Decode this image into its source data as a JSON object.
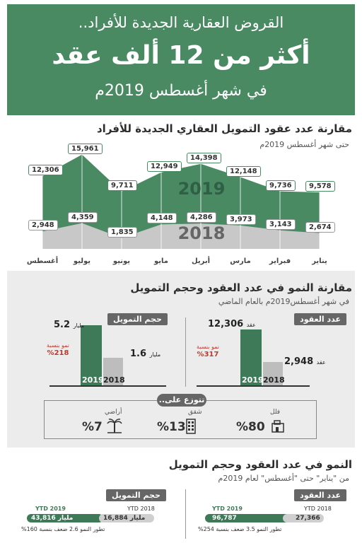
{
  "header": {
    "subtitle": "القروض العقارية الجديدة للأفراد..",
    "title": "أكثر من 12 ألف عقد",
    "date": "في شهر أغسطس 2019م"
  },
  "section1": {
    "title": "مقارنة عدد عقود التمويل العقاري الجديدة للأفراد",
    "subtitle": "حتى شهر أغسطس 2019م"
  },
  "chart_data": {
    "type": "area",
    "categories": [
      "يناير",
      "فبراير",
      "مارس",
      "أبريل",
      "مايو",
      "يونيو",
      "يوليو",
      "أغسطس"
    ],
    "series": [
      {
        "name": "2019",
        "values": [
          9578,
          9736,
          12148,
          14398,
          12949,
          9711,
          15961,
          12306
        ]
      },
      {
        "name": "2018",
        "values": [
          2674,
          3143,
          3973,
          4286,
          4148,
          1835,
          4359,
          2948
        ]
      }
    ],
    "value_labels_2019": [
      "9,578",
      "9,736",
      "12,148",
      "14,398",
      "12,949",
      "9,711",
      "15,961",
      "12,306"
    ],
    "value_labels_2018": [
      "2,674",
      "3,143",
      "3,973",
      "4,286",
      "4,148",
      "1,835",
      "4,359",
      "2,948"
    ],
    "ylim": [
      0,
      17000
    ],
    "colors": {
      "2019": "#4a8a63",
      "2018": "#c8c8c8"
    }
  },
  "section2": {
    "title": "مقارنة النمو في عدد العقود وحجم التمويل",
    "subtitle": "في شهر أغسطس2019م بالعام الماضي",
    "contracts": {
      "tag": "عدد العقود",
      "val2019": "12,306",
      "val2018": "2,948",
      "unit": "عقد",
      "growth_label": "نمو بنسبة",
      "growth": "%317",
      "year2019": "2019",
      "year2018": "2018"
    },
    "financing": {
      "tag": "حجم التمويل",
      "val2019": "5.2",
      "val2018": "1.6",
      "unit": "مليار",
      "growth_label": "نمو بنسبة",
      "growth": "%218",
      "year2019": "2019",
      "year2018": "2018"
    },
    "distribution": {
      "tag": "تتوزع على..",
      "villa": {
        "label": "فلل",
        "value": "%80"
      },
      "apartment": {
        "label": "شقق",
        "value": "%13"
      },
      "land": {
        "label": "أراضي",
        "value": "%7"
      }
    }
  },
  "section3": {
    "title": "النمو في عدد العقود وحجم التمويل",
    "subtitle": "من \"يناير\" حتى \"أغسطس\" لعام 2019م",
    "contracts": {
      "tag": "عدد العقود",
      "ytd2019_label": "YTD 2019",
      "ytd2018_label": "YTD 2018",
      "val2019": "96,787",
      "val2018": "27,366",
      "note": "تطور النمو 3.5 ضعف بنسبة 254%"
    },
    "financing": {
      "tag": "حجم التمويل",
      "ytd2019_label": "YTD 2019",
      "ytd2018_label": "YTD 2018",
      "val2019": "43,816",
      "val2018": "16,884",
      "unit": "مليار",
      "note": "تطور النمو 2.6 ضعف بنسبة 160%"
    }
  }
}
